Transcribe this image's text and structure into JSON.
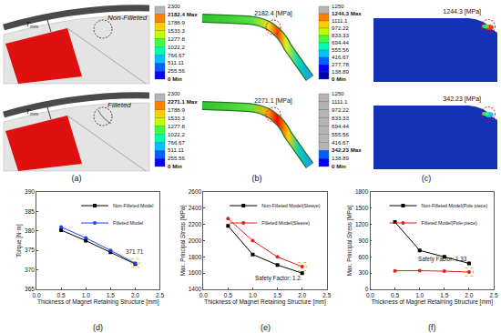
{
  "figure_top": {
    "a": {
      "label": "(a)",
      "rows": [
        {
          "callout": "Non-Filleted",
          "dimension": {
            "base": "T",
            "sub": "mrs"
          }
        },
        {
          "callout": "Filleted",
          "dimension": {
            "base": "T",
            "sub": "mrs"
          }
        }
      ]
    },
    "b": {
      "label": "(b)",
      "rows": [
        {
          "colorbar": [
            "2300",
            "2182.4 Max",
            "1788.9",
            "1533.3",
            "1277.8",
            "1022.2",
            "766.67",
            "511.11",
            "255.56",
            "0 Min"
          ],
          "callout": "2182.4 [MPa]"
        },
        {
          "colorbar": [
            "2300",
            "2271.1 Max",
            "1788.9",
            "1533.3",
            "1277.8",
            "1022.2",
            "766.67",
            "511.11",
            "255.56",
            "0 Min"
          ],
          "callout": "2271.1 [MPa]"
        }
      ]
    },
    "c": {
      "label": "(c)",
      "rows": [
        {
          "colorbar": [
            "1250",
            "1244.3 Max",
            "1111.1",
            "972.22",
            "833.33",
            "694.44",
            "555.56",
            "416.67",
            "277.78",
            "138.89",
            "0 Min"
          ],
          "callout": "1244.3 [MPa]"
        },
        {
          "colorbar": [
            "1250",
            "1111.1",
            "972.22",
            "833.33",
            "694.44",
            "555.56",
            "416.67",
            "342.23 Max",
            "138.89",
            "0 Min"
          ],
          "callout": "342.23 [MPa]"
        }
      ]
    }
  },
  "chart_data": [
    {
      "type": "line",
      "panel_label": "(d)",
      "x_label": "Thickness of Magnet Retaining Structure [mm]",
      "y_label": "Torque [N·m]",
      "x": [
        0.5,
        1.0,
        1.5,
        2.0
      ],
      "series": [
        {
          "name": "Non-Filleted Model",
          "color": "#000000",
          "marker": "square",
          "values": [
            380.2,
            377.5,
            374.5,
            371.5
          ]
        },
        {
          "name": "Filleted Model",
          "color": "#1f3fff",
          "marker": "circle",
          "values": [
            381.0,
            378.2,
            375.0,
            371.71
          ]
        }
      ],
      "xlim": [
        0,
        2.5
      ],
      "xticks": [
        {
          "value": 0,
          "label": "0.0"
        },
        0.5,
        {
          "value": 1,
          "label": "1.0"
        },
        1.5,
        {
          "value": 2,
          "label": "2.0"
        },
        2.5
      ],
      "ylim": [
        365,
        390
      ],
      "yticks": [
        365,
        370,
        375,
        380,
        385,
        390
      ],
      "annotations": [
        {
          "text": "371.71",
          "series": "Filleted Model",
          "x": 2.0
        }
      ],
      "legend": "upper right",
      "grid": false
    },
    {
      "type": "line",
      "panel_label": "(e)",
      "x_label": "Thickness of Magnet Retaining Structure [mm]",
      "y_label": "Max. Principal Stress [MPa]",
      "x": [
        0.5,
        1.0,
        1.5,
        2.0
      ],
      "series": [
        {
          "name": "Non-Filleted Model(Sleeve)",
          "color": "#000000",
          "marker": "square",
          "values": [
            2182.4,
            1830,
            1700,
            1600
          ]
        },
        {
          "name": "Filleted Model(Sleeve)",
          "color": "#e8181c",
          "marker": "circle",
          "values": [
            2271.1,
            2000,
            1800,
            1680
          ]
        }
      ],
      "xlim": [
        0,
        2.5
      ],
      "xticks": [
        {
          "value": 0,
          "label": "0.0"
        },
        0.5,
        {
          "value": 1,
          "label": "1.0"
        },
        1.5,
        {
          "value": 2,
          "label": "2.0"
        },
        2.5
      ],
      "ylim": [
        1400,
        2600
      ],
      "yticks": [
        1400,
        1600,
        1800,
        2000,
        2200,
        2400,
        2600
      ],
      "annotations": [
        {
          "text": "Safety Factor: 1.2",
          "series": "Filleted Model(Sleeve)",
          "x": 2.0
        }
      ],
      "legend": "upper right",
      "grid": false
    },
    {
      "type": "line",
      "panel_label": "(f)",
      "x_label": "Thickness of Magnet Retaining Structure [mm]",
      "y_label": "Max. Principal Stress [MPa]",
      "x": [
        0.5,
        1.0,
        1.5,
        2.0
      ],
      "series": [
        {
          "name": "Non-Filleted Model(Pole piece)",
          "color": "#000000",
          "marker": "square",
          "values": [
            1244.3,
            720,
            600,
            480
          ]
        },
        {
          "name": "Filleted Model(Pole piece)",
          "color": "#e8181c",
          "marker": "circle",
          "values": [
            342.23,
            345,
            335,
            320
          ]
        }
      ],
      "xlim": [
        0,
        2.5
      ],
      "xticks": [
        {
          "value": 0,
          "label": "0.0"
        },
        0.5,
        {
          "value": 1,
          "label": "1.0"
        },
        1.5,
        {
          "value": 2,
          "label": "2.0"
        },
        2.5
      ],
      "ylim": [
        0,
        1800
      ],
      "yticks": [
        0,
        300,
        600,
        900,
        1200,
        1500,
        1800
      ],
      "annotations": [
        {
          "text": "Safety Factor: 1.33",
          "series": "Filleted Model(Pole piece)",
          "x": 2.0
        }
      ],
      "legend": "upper right",
      "grid": false
    }
  ]
}
